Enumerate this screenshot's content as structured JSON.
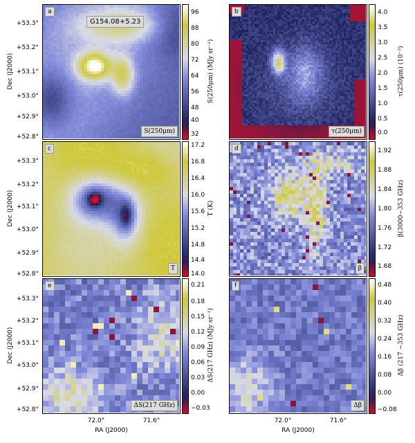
{
  "figure": {
    "source_name": "G154.08+5.23",
    "dec_axis_label": "Dec (J2000)",
    "ra_axis_label": "RA (J2000)",
    "dec_ticks": [
      "+53.3°",
      "+53.2°",
      "+53.1°",
      "+53.0°",
      "+52.9°",
      "+52.8°"
    ],
    "ra_ticks": [
      "72.0°",
      "71.6°"
    ]
  },
  "panels": [
    {
      "id": "a",
      "quantity": "S(250μm)",
      "colorbar_label": "S(250μm) (MJy sr⁻¹)",
      "colorbar_ticks": [
        "96",
        "88",
        "80",
        "72",
        "64",
        "56",
        "48",
        "40",
        "32"
      ],
      "colormap": "coolwarm-yellow"
    },
    {
      "id": "b",
      "quantity": "τ(250μm)",
      "colorbar_label": "τ(250μm) (10⁻³)",
      "colorbar_ticks": [
        "4.0",
        "3.5",
        "3.0",
        "2.5",
        "2.0",
        "1.5",
        "1.0",
        "0.5",
        "0.0"
      ],
      "colormap": "coolwarm-yellow"
    },
    {
      "id": "c",
      "quantity": "T",
      "colorbar_label": "T (K)",
      "colorbar_ticks": [
        "17.2",
        "16.8",
        "16.4",
        "16.0",
        "15.6",
        "15.2",
        "14.8",
        "14.4",
        "14.0"
      ],
      "colormap": "coolwarm-yellow"
    },
    {
      "id": "d",
      "quantity": "β",
      "colorbar_label": "β(3000−353 GHz)",
      "colorbar_ticks": [
        "1.92",
        "1.88",
        "1.84",
        "1.80",
        "1.76",
        "1.72",
        "1.68"
      ],
      "colormap": "coolwarm-yellow"
    },
    {
      "id": "e",
      "quantity": "ΔS(217 GHz)",
      "colorbar_label": "ΔS(217 GHz) (MJy sr⁻¹)",
      "colorbar_ticks": [
        "0.21",
        "0.18",
        "0.15",
        "0.12",
        "0.09",
        "0.06",
        "0.03",
        "0.00",
        "−0.03"
      ],
      "colormap": "coolwarm-yellow"
    },
    {
      "id": "f",
      "quantity": "Δβ",
      "colorbar_label": "Δβ (217 −353 GHz)",
      "colorbar_ticks": [
        "0.48",
        "0.40",
        "0.32",
        "0.24",
        "0.16",
        "0.08",
        "0.00",
        "−0.08"
      ],
      "colormap": "coolwarm-yellow"
    }
  ],
  "colors": {
    "low": "#d0102a",
    "dark": "#1c1f5a",
    "mid": "#8088d8",
    "light": "#d8dae8",
    "high": "#cfc83a",
    "top": "#ffffff"
  }
}
